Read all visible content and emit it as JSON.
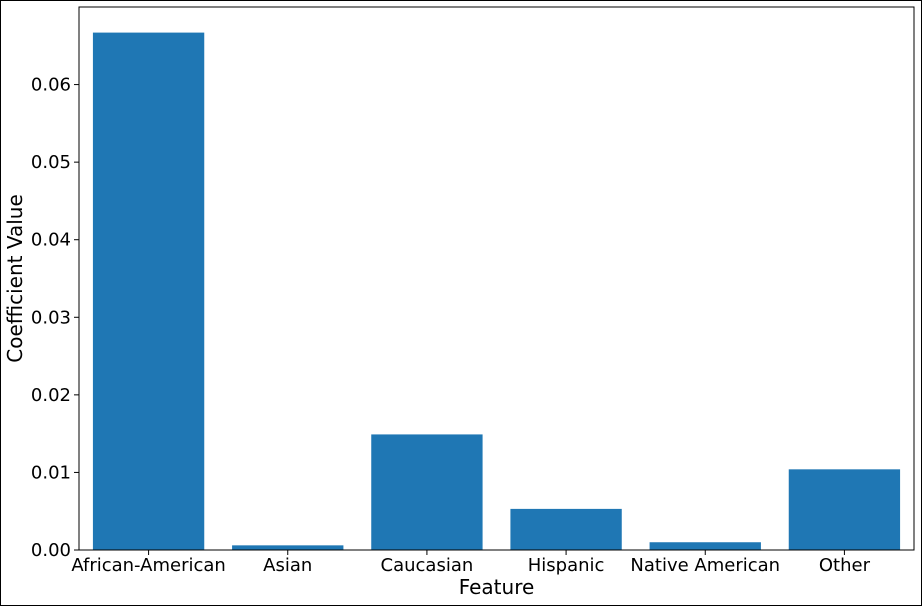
{
  "chart_data": {
    "type": "bar",
    "categories": [
      "African-American",
      "Asian",
      "Caucasian",
      "Hispanic",
      "Native American",
      "Other"
    ],
    "values": [
      0.0667,
      0.0006,
      0.0149,
      0.0053,
      0.001,
      0.0104
    ],
    "title": "",
    "xlabel": "Feature",
    "ylabel": "Coefficient Value",
    "ylim": [
      0,
      0.07
    ],
    "yticks": [
      0.0,
      0.01,
      0.02,
      0.03,
      0.04,
      0.05,
      0.06
    ],
    "ytick_labels": [
      "0.00",
      "0.01",
      "0.02",
      "0.03",
      "0.04",
      "0.05",
      "0.06"
    ],
    "grid": false,
    "legend": "none",
    "bar_color": "#1f77b4"
  }
}
